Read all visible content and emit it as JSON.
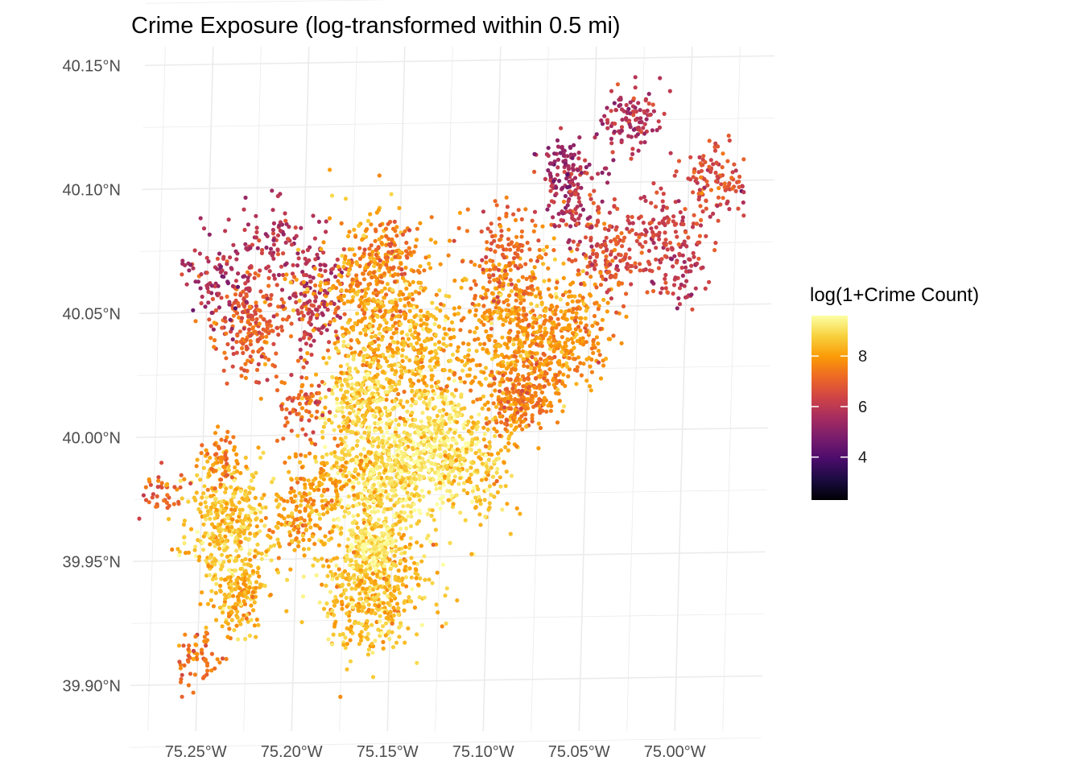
{
  "chart_data": {
    "type": "scatter",
    "title": "Crime Exposure (log-transformed within 0.5 mi)",
    "xlabel": "",
    "ylabel": "",
    "x_ticks": [
      "75.25°W",
      "75.20°W",
      "75.15°W",
      "75.10°W",
      "75.05°W",
      "75.00°W"
    ],
    "x_tick_values": [
      -75.25,
      -75.2,
      -75.15,
      -75.1,
      -75.05,
      -75.0
    ],
    "y_ticks": [
      "40.15°N",
      "40.10°N",
      "40.05°N",
      "40.00°N",
      "39.95°N",
      "39.90°N"
    ],
    "y_tick_values": [
      40.15,
      40.1,
      40.05,
      40.0,
      39.95,
      39.9
    ],
    "xlim": [
      -75.285,
      -74.955
    ],
    "ylim": [
      39.885,
      40.165
    ],
    "grid": true,
    "legend": {
      "title": "log(1+Crime Count)",
      "placement": "right",
      "labels": [
        "8",
        "6",
        "4"
      ],
      "label_values": [
        8,
        6,
        4
      ],
      "min": 2.3,
      "max": 9.6,
      "palette": [
        "#000004",
        "#1b0c41",
        "#4a0c6b",
        "#781c6d",
        "#a52c60",
        "#cf4446",
        "#ed6925",
        "#fb9b06",
        "#f7d13d",
        "#fcffa4"
      ]
    },
    "regions": [
      {
        "lon": -75.225,
        "lat": 40.045,
        "spread": 0.014,
        "n": 230,
        "value": 6.9
      },
      {
        "lon": -75.215,
        "lat": 40.075,
        "spread": 0.014,
        "n": 110,
        "value": 5.8
      },
      {
        "lon": -75.245,
        "lat": 40.065,
        "spread": 0.012,
        "n": 80,
        "value": 5.6
      },
      {
        "lon": -75.19,
        "lat": 40.06,
        "spread": 0.012,
        "n": 90,
        "value": 5.9
      },
      {
        "lon": -75.165,
        "lat": 40.055,
        "spread": 0.022,
        "n": 450,
        "value": 8.0
      },
      {
        "lon": -75.14,
        "lat": 40.03,
        "spread": 0.02,
        "n": 350,
        "value": 8.3
      },
      {
        "lon": -75.17,
        "lat": 40.015,
        "spread": 0.012,
        "n": 200,
        "value": 8.8
      },
      {
        "lon": -75.155,
        "lat": 39.985,
        "spread": 0.02,
        "n": 650,
        "value": 9.0
      },
      {
        "lon": -75.125,
        "lat": 39.997,
        "spread": 0.013,
        "n": 280,
        "value": 9.2
      },
      {
        "lon": -75.105,
        "lat": 39.985,
        "spread": 0.012,
        "n": 140,
        "value": 8.5
      },
      {
        "lon": -75.185,
        "lat": 39.98,
        "spread": 0.013,
        "n": 120,
        "value": 8.0
      },
      {
        "lon": -75.16,
        "lat": 39.94,
        "spread": 0.018,
        "n": 550,
        "value": 8.5
      },
      {
        "lon": -75.16,
        "lat": 39.955,
        "spread": 0.007,
        "n": 130,
        "value": 9.4
      },
      {
        "lon": -75.235,
        "lat": 39.965,
        "spread": 0.015,
        "n": 380,
        "value": 8.6
      },
      {
        "lon": -75.23,
        "lat": 39.935,
        "spread": 0.01,
        "n": 160,
        "value": 8.3
      },
      {
        "lon": -75.25,
        "lat": 39.91,
        "spread": 0.008,
        "n": 60,
        "value": 7.4
      },
      {
        "lon": -75.27,
        "lat": 39.978,
        "spread": 0.007,
        "n": 40,
        "value": 7.0
      },
      {
        "lon": -75.24,
        "lat": 39.99,
        "spread": 0.008,
        "n": 60,
        "value": 7.5
      },
      {
        "lon": -75.2,
        "lat": 39.965,
        "spread": 0.01,
        "n": 100,
        "value": 8.0
      },
      {
        "lon": -75.2,
        "lat": 40.01,
        "spread": 0.008,
        "n": 40,
        "value": 7.0
      },
      {
        "lon": -75.09,
        "lat": 40.04,
        "spread": 0.02,
        "n": 400,
        "value": 8.0
      },
      {
        "lon": -75.06,
        "lat": 40.04,
        "spread": 0.015,
        "n": 250,
        "value": 7.8
      },
      {
        "lon": -75.095,
        "lat": 40.07,
        "spread": 0.014,
        "n": 160,
        "value": 7.1
      },
      {
        "lon": -75.075,
        "lat": 40.02,
        "spread": 0.011,
        "n": 120,
        "value": 7.6
      },
      {
        "lon": -75.09,
        "lat": 40.01,
        "spread": 0.01,
        "n": 100,
        "value": 7.6
      },
      {
        "lon": -75.06,
        "lat": 40.095,
        "spread": 0.012,
        "n": 120,
        "value": 5.9
      },
      {
        "lon": -75.04,
        "lat": 40.07,
        "spread": 0.012,
        "n": 150,
        "value": 6.6
      },
      {
        "lon": -75.03,
        "lat": 40.125,
        "spread": 0.01,
        "n": 110,
        "value": 5.8
      },
      {
        "lon": -75.065,
        "lat": 40.107,
        "spread": 0.008,
        "n": 60,
        "value": 5.2
      },
      {
        "lon": -75.01,
        "lat": 40.08,
        "spread": 0.012,
        "n": 130,
        "value": 6.3
      },
      {
        "lon": -74.985,
        "lat": 40.1,
        "spread": 0.01,
        "n": 110,
        "value": 6.6
      },
      {
        "lon": -75.0,
        "lat": 40.06,
        "spread": 0.008,
        "n": 50,
        "value": 6.0
      },
      {
        "lon": -75.085,
        "lat": 40.015,
        "spread": 0.006,
        "n": 40,
        "value": 7.2
      },
      {
        "lon": -75.155,
        "lat": 40.072,
        "spread": 0.01,
        "n": 80,
        "value": 7.3
      },
      {
        "lon": -75.195,
        "lat": 40.045,
        "spread": 0.01,
        "n": 50,
        "value": 6.2
      },
      {
        "lon": -75.195,
        "lat": 40.015,
        "spread": 0.006,
        "n": 30,
        "value": 7.0
      }
    ]
  }
}
